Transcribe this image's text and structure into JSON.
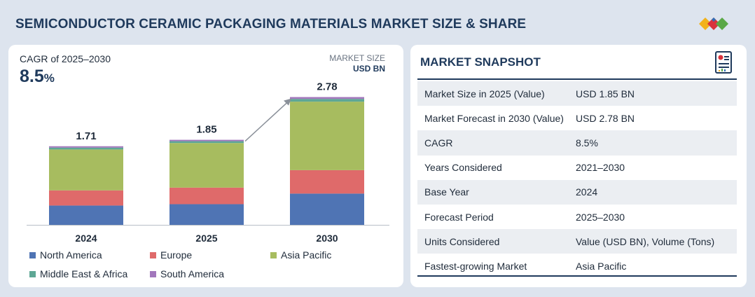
{
  "header": {
    "title": "SEMICONDUCTOR CERAMIC PACKAGING MATERIALS MARKET SIZE & SHARE"
  },
  "left_panel": {
    "cagr_label": "CAGR of 2025–2030",
    "cagr_value": "8.5",
    "cagr_unit": "%",
    "market_size_label": "MARKET SIZE",
    "market_size_unit": "USD BN"
  },
  "chart_data": {
    "type": "bar",
    "stacked": true,
    "categories": [
      "2024",
      "2025",
      "2030"
    ],
    "totals": [
      1.71,
      1.85,
      2.78
    ],
    "total_labels": [
      "1.71",
      "1.85",
      "2.78"
    ],
    "series": [
      {
        "name": "North America",
        "values": [
          0.42,
          0.45,
          0.68
        ],
        "color": "#4f74b4"
      },
      {
        "name": "Europe",
        "values": [
          0.33,
          0.36,
          0.51
        ],
        "color": "#df6a6a"
      },
      {
        "name": "Asia Pacific",
        "values": [
          0.89,
          0.97,
          1.49
        ],
        "color": "#a7bc5f"
      },
      {
        "name": "Middle East & Africa",
        "values": [
          0.04,
          0.04,
          0.06
        ],
        "color": "#5ea795"
      },
      {
        "name": "South America",
        "values": [
          0.03,
          0.03,
          0.04
        ],
        "color": "#a277bc"
      }
    ],
    "ylim": [
      0,
      3.2
    ],
    "legend_position": "bottom",
    "grid": false,
    "annotation": "growth arrow from 2025 to 2030"
  },
  "snapshot": {
    "title": "MARKET SNAPSHOT",
    "rows": [
      {
        "key": "Market Size in 2025 (Value)",
        "value": "USD 1.85 BN"
      },
      {
        "key": "Market Forecast in 2030 (Value)",
        "value": "USD 2.78 BN"
      },
      {
        "key": "CAGR",
        "value": "8.5%"
      },
      {
        "key": "Years Considered",
        "value": "2021–2030"
      },
      {
        "key": "Base Year",
        "value": "2024"
      },
      {
        "key": "Forecast Period",
        "value": "2025–2030"
      },
      {
        "key": "Units Considered",
        "value": "Value (USD BN), Volume (Tons)"
      },
      {
        "key": "Fastest-growing Market",
        "value": "Asia Pacific"
      }
    ]
  },
  "icons": {
    "logo": "marketsandmarkets-logo",
    "snapshot": "report-document-icon"
  }
}
